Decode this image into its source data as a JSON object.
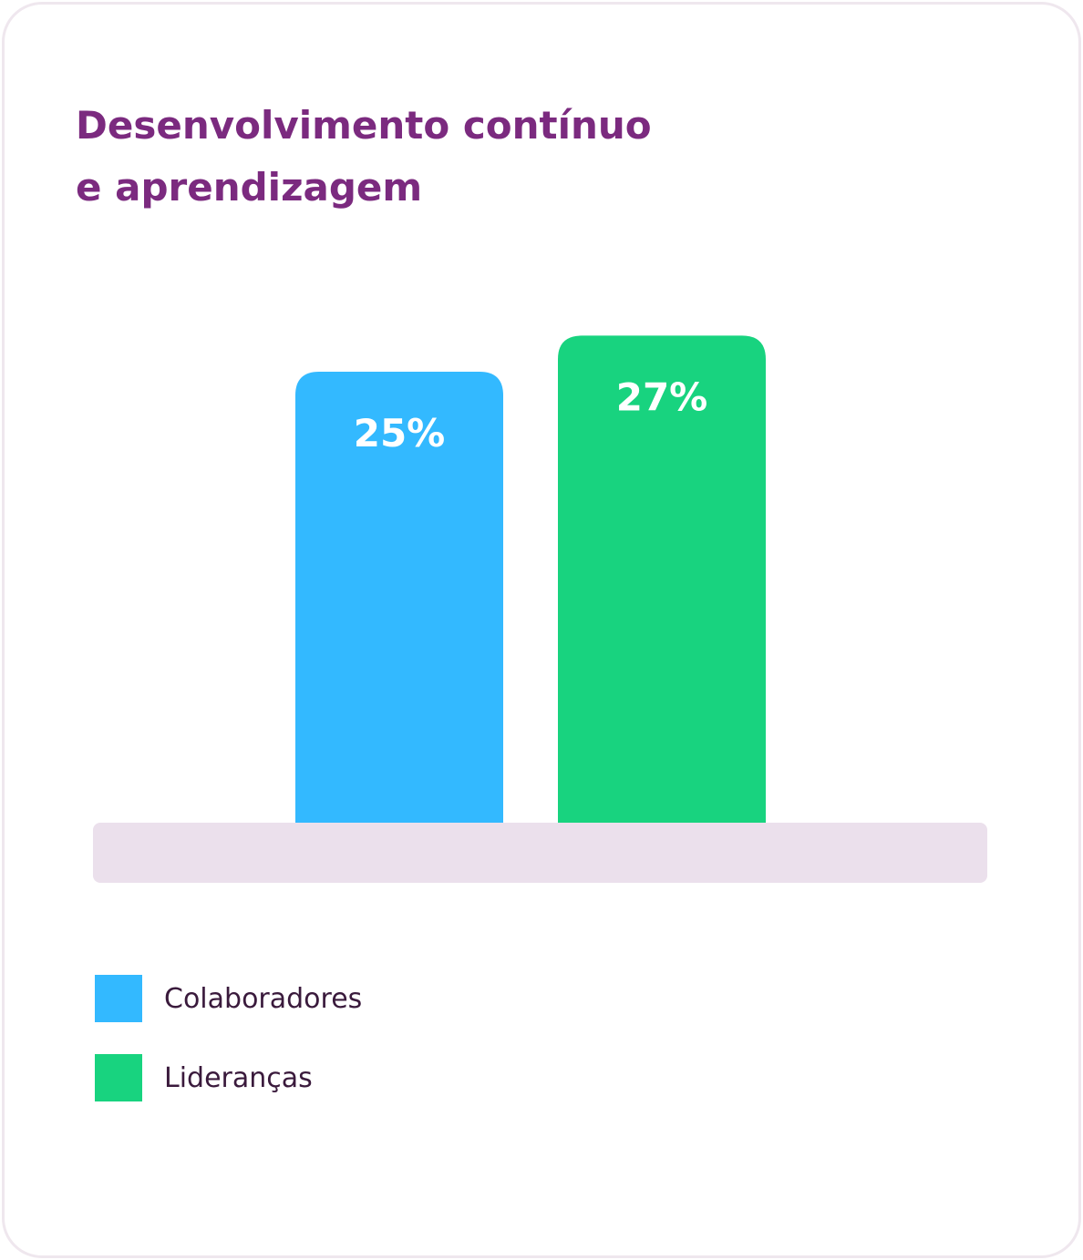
{
  "chart_data": {
    "type": "bar",
    "title_lines": [
      "Desenvolvimento contínuo",
      "e aprendizagem"
    ],
    "categories": [
      "Colaboradores",
      "Lideranças"
    ],
    "values": [
      25,
      27
    ],
    "value_labels": [
      "25%",
      "27%"
    ],
    "colors": [
      "#33b9ff",
      "#18d37f"
    ],
    "base_color": "#ebe0ec",
    "title_color": "#7b2a7f",
    "unit": "%",
    "legend_position": "bottom-left",
    "grid": false,
    "axes_visible": false
  }
}
